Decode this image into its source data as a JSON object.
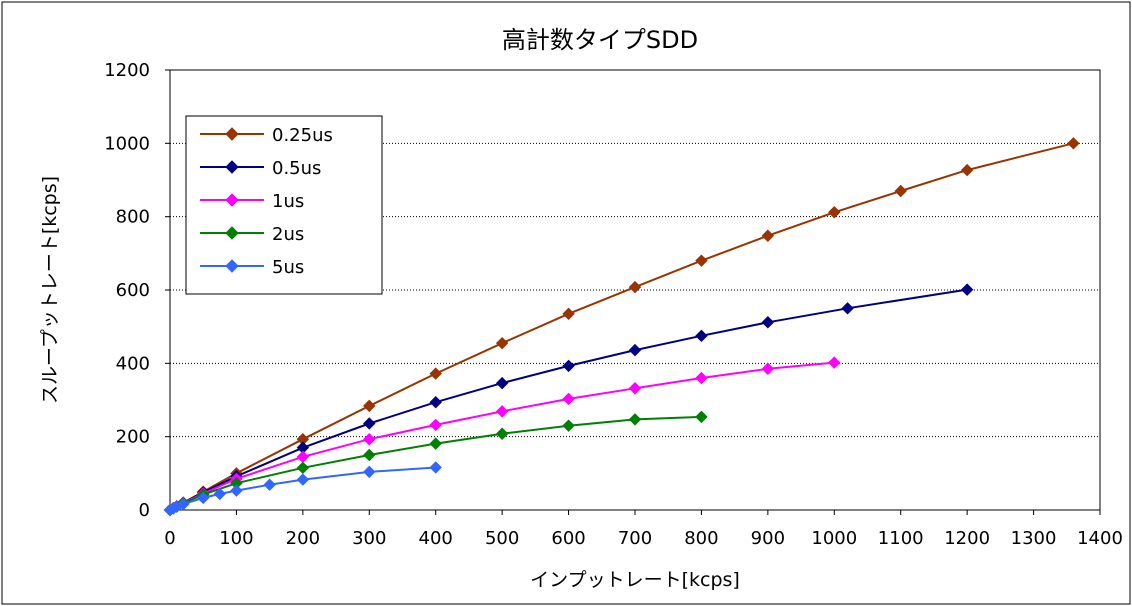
{
  "chart_data": {
    "type": "line",
    "title": "高計数タイプSDD",
    "xlabel": "インプットレート[kcps]",
    "ylabel": "スループットレート[kcps]",
    "xlim": [
      0,
      1400
    ],
    "ylim": [
      0,
      1200
    ],
    "x_ticks": [
      "0",
      "100",
      "200",
      "300",
      "400",
      "500",
      "600",
      "700",
      "800",
      "900",
      "1000",
      "1100",
      "1200",
      "1300",
      "1400"
    ],
    "y_ticks": [
      "0",
      "200",
      "400",
      "600",
      "800",
      "1000",
      "1200"
    ],
    "grid": "horizontal-dotted",
    "legend_position": "top-left",
    "series": [
      {
        "name": "0.25us",
        "color": "#993300",
        "x": [
          0,
          5,
          10,
          20,
          50,
          100,
          200,
          300,
          400,
          500,
          600,
          700,
          800,
          900,
          1000,
          1100,
          1200,
          1360
        ],
        "y": [
          0,
          5,
          10,
          20,
          50,
          100,
          193,
          284,
          372,
          455,
          535,
          608,
          680,
          748,
          812,
          870,
          927,
          1000
        ]
      },
      {
        "name": "0.5us",
        "color": "#000080",
        "x": [
          0,
          5,
          10,
          20,
          50,
          100,
          200,
          300,
          400,
          500,
          600,
          700,
          800,
          900,
          1020,
          1200
        ],
        "y": [
          0,
          5,
          10,
          20,
          48,
          92,
          170,
          236,
          294,
          346,
          393,
          436,
          475,
          512,
          550,
          601
        ]
      },
      {
        "name": "1us",
        "color": "#ff00ff",
        "x": [
          0,
          5,
          10,
          20,
          50,
          100,
          200,
          300,
          400,
          500,
          600,
          700,
          800,
          900,
          1000
        ],
        "y": [
          0,
          5,
          10,
          19,
          45,
          85,
          145,
          193,
          232,
          269,
          303,
          332,
          360,
          385,
          402
        ]
      },
      {
        "name": "2us",
        "color": "#008000",
        "x": [
          0,
          5,
          10,
          20,
          50,
          100,
          200,
          300,
          400,
          500,
          600,
          700,
          800
        ],
        "y": [
          0,
          5,
          9,
          18,
          42,
          73,
          115,
          150,
          181,
          208,
          230,
          247,
          254
        ]
      },
      {
        "name": "5us",
        "color": "#3366ff",
        "x": [
          0,
          5,
          10,
          20,
          50,
          75,
          100,
          150,
          200,
          300,
          400
        ],
        "y": [
          0,
          4,
          9,
          16,
          33,
          44,
          53,
          69,
          83,
          104,
          116
        ]
      }
    ]
  }
}
